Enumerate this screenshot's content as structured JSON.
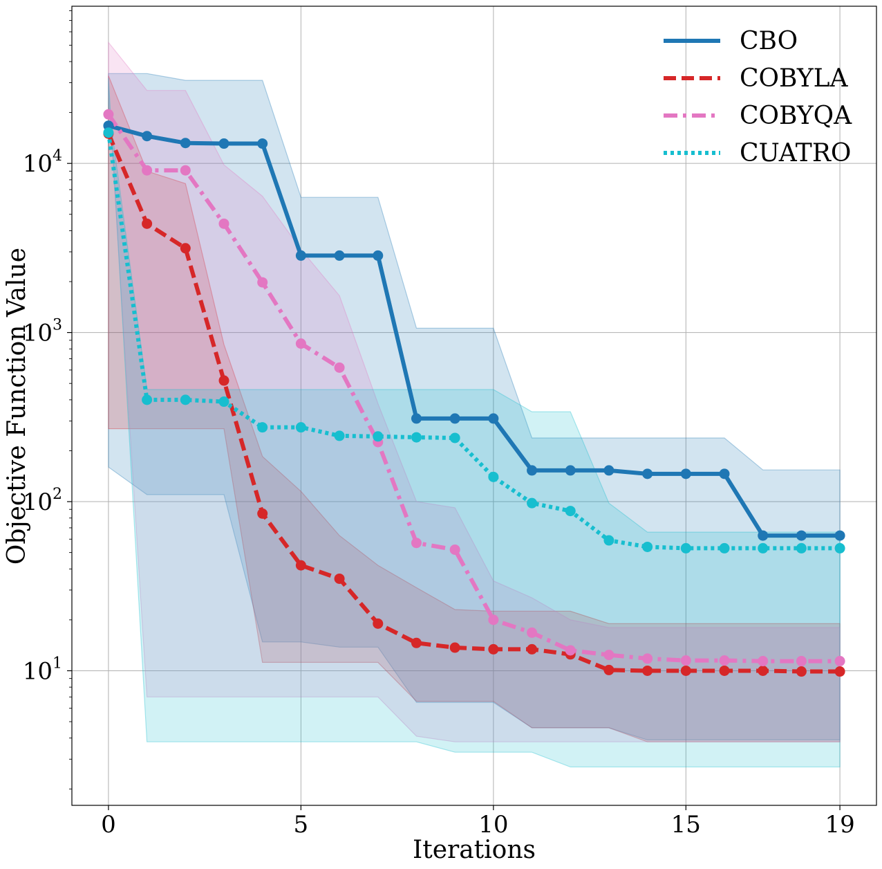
{
  "chart_data": {
    "type": "line",
    "title": "",
    "xlabel": "Iterations",
    "ylabel": "Objective Function Value",
    "yscale": "log",
    "xlim": [
      -0.95,
      19.95
    ],
    "ylim": [
      1.6,
      85000
    ],
    "grid": true,
    "legend_position": "top-right",
    "x": [
      0,
      1,
      2,
      3,
      4,
      5,
      6,
      7,
      8,
      9,
      10,
      11,
      12,
      13,
      14,
      15,
      16,
      17,
      18,
      19
    ],
    "xticks": [
      {
        "value": 0,
        "label": "0"
      },
      {
        "value": 5,
        "label": "5"
      },
      {
        "value": 10,
        "label": "10"
      },
      {
        "value": 15,
        "label": "15"
      },
      {
        "value": 19,
        "label": "19"
      }
    ],
    "yticks": [
      {
        "value": 10,
        "base": "10",
        "exp": "1"
      },
      {
        "value": 100,
        "base": "10",
        "exp": "2"
      },
      {
        "value": 1000,
        "base": "10",
        "exp": "3"
      },
      {
        "value": 10000,
        "base": "10",
        "exp": "4"
      }
    ],
    "series": [
      {
        "name": "CBO",
        "key": "cbo",
        "color": "#1f77b4",
        "dash": "solid",
        "values": [
          16700,
          14500,
          13200,
          13100,
          13100,
          2850,
          2850,
          2850,
          310,
          310,
          310,
          153,
          153,
          153,
          146,
          146,
          146,
          63,
          63,
          63
        ],
        "band_upper": [
          34000,
          34000,
          31000,
          31000,
          31000,
          6300,
          6300,
          6300,
          1060,
          1060,
          1060,
          238,
          238,
          238,
          238,
          238,
          238,
          154,
          154,
          154
        ],
        "band_lower": [
          160,
          110,
          110,
          110,
          14.8,
          14.8,
          13.8,
          13.8,
          6.5,
          6.5,
          6.5,
          4.6,
          4.6,
          4.6,
          3.9,
          3.9,
          3.9,
          3.9,
          3.9,
          3.9
        ]
      },
      {
        "name": "COBYLA",
        "key": "cobyla",
        "color": "#d62728",
        "dash": "dashed",
        "values": [
          15000,
          4400,
          3150,
          520,
          85,
          42,
          35,
          19,
          14.6,
          13.7,
          13.4,
          13.4,
          12.5,
          10.1,
          10,
          10,
          10,
          10,
          9.9,
          9.9
        ],
        "band_upper": [
          33000,
          9000,
          7600,
          850,
          185,
          115,
          63,
          42,
          31,
          23,
          22.5,
          22.5,
          22.5,
          19,
          19,
          19,
          19,
          19,
          19,
          19
        ],
        "band_lower": [
          270,
          270,
          270,
          270,
          11.2,
          11.2,
          11.2,
          11.2,
          6.6,
          6.6,
          6.6,
          4.6,
          4.6,
          4.6,
          3.8,
          3.8,
          3.8,
          3.8,
          3.8,
          3.8
        ]
      },
      {
        "name": "COBYQA",
        "key": "cobyqa",
        "color": "#e377c2",
        "dash": "dashdot",
        "values": [
          19500,
          9100,
          9100,
          4400,
          1980,
          860,
          620,
          225,
          57,
          52,
          20,
          16.8,
          13.2,
          12.4,
          11.8,
          11.5,
          11.5,
          11.4,
          11.4,
          11.4
        ],
        "band_upper": [
          52000,
          27000,
          27000,
          9800,
          6400,
          3100,
          1650,
          380,
          100,
          92,
          34,
          27,
          20,
          18,
          18,
          18,
          18,
          18,
          18,
          18
        ],
        "band_lower": [
          26000,
          7,
          7,
          7,
          7,
          7,
          7,
          7,
          4.1,
          3.8,
          3.8,
          3.8,
          3.8,
          3.8,
          3.8,
          3.8,
          3.8,
          3.8,
          3.8,
          3.8
        ]
      },
      {
        "name": "CUATRO",
        "key": "cuatro",
        "color": "#17becf",
        "dash": "dotted",
        "values": [
          15200,
          400,
          400,
          390,
          275,
          275,
          245,
          243,
          240,
          238,
          140,
          98,
          88,
          59,
          54,
          53,
          53,
          53,
          53,
          53
        ],
        "band_upper": [
          22000,
          460,
          460,
          460,
          460,
          460,
          460,
          460,
          460,
          460,
          460,
          340,
          340,
          98,
          66,
          66,
          66,
          66,
          66,
          66
        ],
        "band_lower": [
          32000,
          3.8,
          3.8,
          3.8,
          3.8,
          3.8,
          3.8,
          3.8,
          3.8,
          3.3,
          3.3,
          3.3,
          2.7,
          2.7,
          2.7,
          2.7,
          2.7,
          2.7,
          2.7,
          2.7
        ]
      }
    ]
  }
}
